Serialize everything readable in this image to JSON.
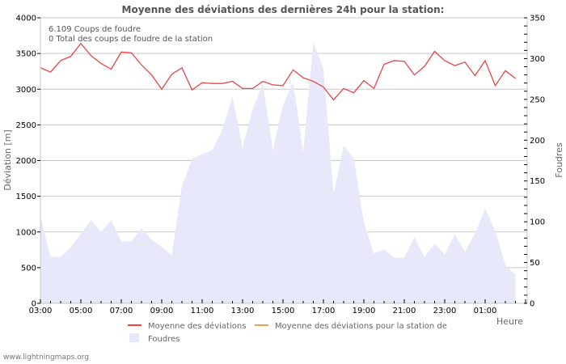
{
  "chart_data": {
    "type": "line",
    "title": "Moyenne des déviations des dernières 24h pour la station:",
    "info_lines": [
      "6.109  Coups de foudre",
      "0 Total des coups de foudre de la station"
    ],
    "xlabel": "Heure",
    "ylabel": "Déviation  [m]",
    "ylabel_right": "Foudres",
    "ylim": [
      0,
      4000
    ],
    "ylim_right": [
      0,
      350
    ],
    "yticks": [
      0,
      500,
      1000,
      1500,
      2000,
      2500,
      3000,
      3500,
      4000
    ],
    "yticks_right": [
      0,
      50,
      100,
      150,
      200,
      250,
      300,
      350
    ],
    "xtick_labels": [
      "03:00",
      "05:00",
      "07:00",
      "09:00",
      "11:00",
      "13:00",
      "15:00",
      "17:00",
      "19:00",
      "21:00",
      "23:00",
      "01:00"
    ],
    "grid": true,
    "legend_position": "bottom",
    "x": [
      "03:00",
      "03:30",
      "04:00",
      "04:30",
      "05:00",
      "05:30",
      "06:00",
      "06:30",
      "07:00",
      "07:30",
      "08:00",
      "08:30",
      "09:00",
      "09:30",
      "10:00",
      "10:30",
      "11:00",
      "11:30",
      "12:00",
      "12:30",
      "13:00",
      "13:30",
      "14:00",
      "14:30",
      "15:00",
      "15:30",
      "16:00",
      "16:30",
      "17:00",
      "17:30",
      "18:00",
      "18:30",
      "19:00",
      "19:30",
      "20:00",
      "20:30",
      "21:00",
      "21:30",
      "22:00",
      "22:30",
      "23:00",
      "23:30",
      "00:00",
      "00:30",
      "01:00",
      "01:30",
      "02:00",
      "02:30"
    ],
    "series": [
      {
        "name": "Moyenne des déviations",
        "type": "line",
        "axis": "left",
        "color": "#e8454a",
        "values": [
          3300,
          3240,
          3400,
          3460,
          3640,
          3470,
          3360,
          3280,
          3520,
          3510,
          3340,
          3200,
          3000,
          3210,
          3300,
          2990,
          3090,
          3080,
          3080,
          3110,
          3010,
          3010,
          3110,
          3060,
          3050,
          3270,
          3160,
          3110,
          3030,
          2850,
          3010,
          2950,
          3120,
          3010,
          3350,
          3400,
          3390,
          3200,
          3320,
          3530,
          3400,
          3330,
          3380,
          3190,
          3400,
          3050,
          3260,
          3150
        ]
      },
      {
        "name": "Moyenne des déviations pour la station de",
        "type": "line",
        "axis": "left",
        "color": "#f0a050",
        "values": []
      },
      {
        "name": "Foudres",
        "type": "area",
        "axis": "right",
        "color": "#e8e8fb",
        "values": [
          107,
          57,
          57,
          69,
          85,
          102,
          88,
          102,
          76,
          76,
          92,
          78,
          69,
          59,
          144,
          177,
          183,
          188,
          213,
          253,
          191,
          238,
          270,
          188,
          243,
          271,
          185,
          319,
          288,
          134,
          193,
          178,
          99,
          61,
          66,
          56,
          56,
          81,
          57,
          73,
          60,
          85,
          63,
          86,
          116,
          89,
          47,
          35
        ]
      }
    ]
  },
  "footer": "www.lightningmaps.org"
}
